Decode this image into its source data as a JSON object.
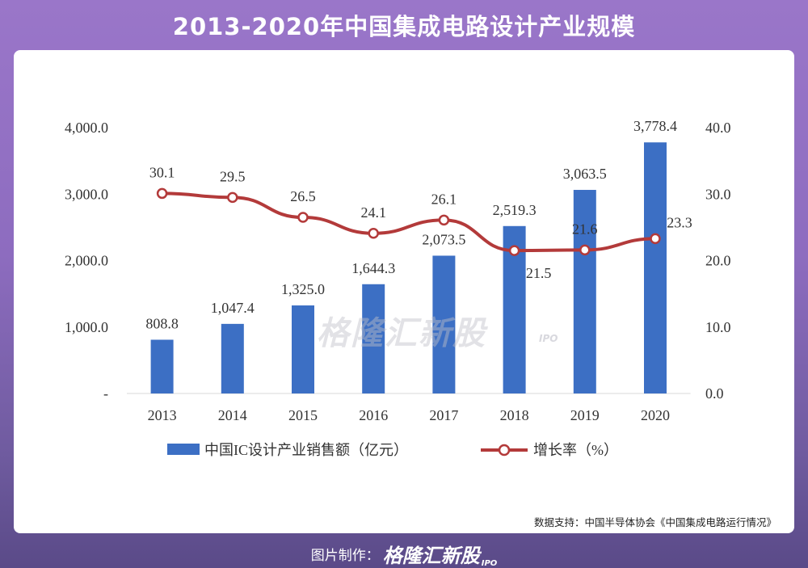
{
  "header": {
    "title": "2013-2020年中国集成电路设计产业规模"
  },
  "chart_data": {
    "type": "bar+line",
    "categories": [
      "2013",
      "2014",
      "2015",
      "2016",
      "2017",
      "2018",
      "2019",
      "2020"
    ],
    "series": [
      {
        "name": "中国IC设计产业销售额（亿元）",
        "type": "bar",
        "axis": "left",
        "color": "#3c6fc4",
        "values": [
          808.8,
          1047.4,
          1325.0,
          1644.3,
          2073.5,
          2519.3,
          3063.5,
          3778.4
        ],
        "labels": [
          "808.8",
          "1,047.4",
          "1,325.0",
          "1,644.3",
          "2,073.5",
          "2,519.3",
          "3,063.5",
          "3,778.4"
        ]
      },
      {
        "name": "增长率（%）",
        "type": "line",
        "axis": "right",
        "color": "#b33a3a",
        "values": [
          30.1,
          29.5,
          26.5,
          24.1,
          26.1,
          21.5,
          21.6,
          23.3
        ],
        "labels": [
          "30.1",
          "29.5",
          "26.5",
          "24.1",
          "26.1",
          "21.5",
          "21.6",
          "23.3"
        ]
      }
    ],
    "y_left": {
      "ylim": [
        0,
        4000
      ],
      "ticks": [
        "-",
        "1,000.0",
        "2,000.0",
        "3,000.0",
        "4,000.0"
      ]
    },
    "y_right": {
      "ylim": [
        0,
        40
      ],
      "ticks": [
        "0.0",
        "10.0",
        "20.0",
        "30.0",
        "40.0"
      ]
    },
    "legend_position": "bottom-center",
    "grid": false
  },
  "source": "数据支持：中国半导体协会《中国集成电路运行情况》",
  "watermark": {
    "text": "格隆汇新股",
    "sub": "IPO"
  },
  "footer": {
    "label": "图片制作：",
    "brand": "格隆汇新股",
    "brand_sub": "IPO"
  }
}
